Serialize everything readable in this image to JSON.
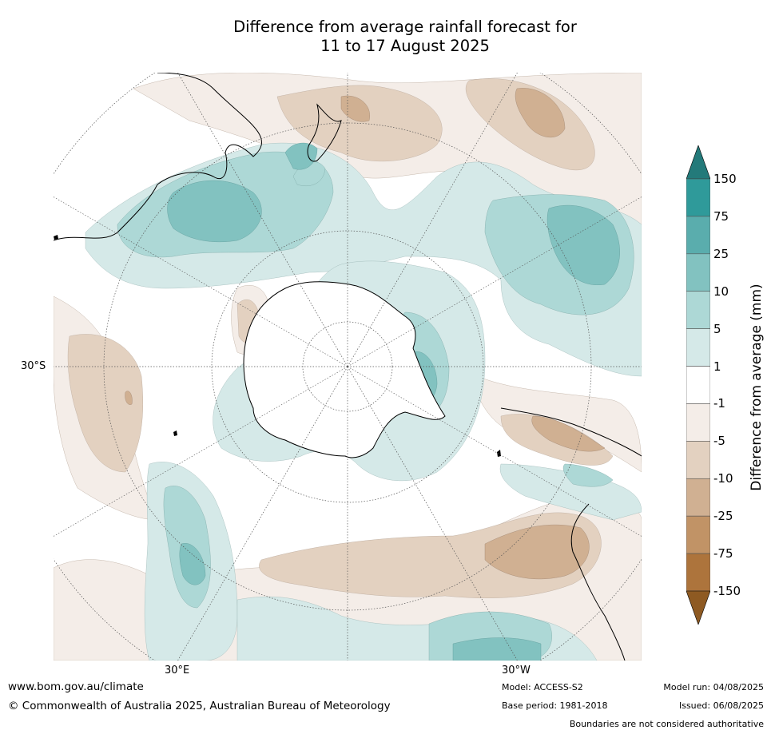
{
  "title_line1": "Difference from average rainfall forecast for",
  "title_line2": "11 to 17 August 2025",
  "map_labels": {
    "lat_30s": "30°S",
    "lon_30e": "30°E",
    "lon_30w": "30°W"
  },
  "colorbar": {
    "label": "Difference from average (mm)",
    "ticks": [
      "150",
      "75",
      "25",
      "10",
      "5",
      "1",
      "-1",
      "-5",
      "-10",
      "-25",
      "-75",
      "-150"
    ],
    "colors": [
      "#237a7a",
      "#2f9a9a",
      "#5aadad",
      "#82c2c0",
      "#add8d6",
      "#d5e9e8",
      "#ffffff",
      "#f4ede8",
      "#e3d1c0",
      "#d0b092",
      "#c19366",
      "#ad743c",
      "#8e5a22"
    ]
  },
  "footer": {
    "website": "www.bom.gov.au/climate",
    "copyright": "© Commonwealth of Australia 2025, Australian Bureau of Meteorology",
    "model": "Model: ACCESS-S2",
    "base_period": "Base period: 1981-2018",
    "model_run": "Model run: 04/08/2025",
    "issued": "Issued: 06/08/2025",
    "disclaimer": "Boundaries are not considered authoritative"
  }
}
